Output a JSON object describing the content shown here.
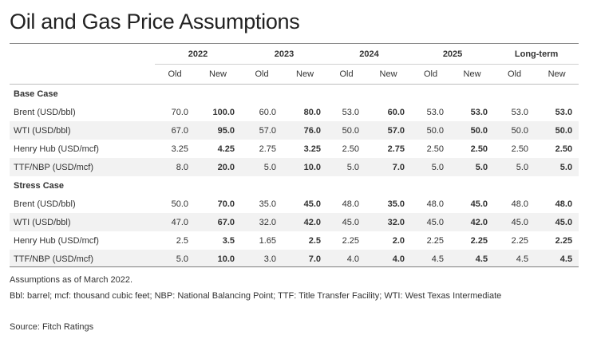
{
  "title": "Oil and Gas Price Assumptions",
  "table": {
    "years": [
      "2022",
      "2023",
      "2024",
      "2025",
      "Long-term"
    ],
    "old_label": "Old",
    "new_label": "New",
    "sections": [
      {
        "name": "Base Case",
        "rows": [
          {
            "label": "Brent (USD/bbl)",
            "values": [
              "70.0",
              "100.0",
              "60.0",
              "80.0",
              "53.0",
              "60.0",
              "53.0",
              "53.0",
              "53.0",
              "53.0"
            ]
          },
          {
            "label": "WTI (USD/bbl)",
            "values": [
              "67.0",
              "95.0",
              "57.0",
              "76.0",
              "50.0",
              "57.0",
              "50.0",
              "50.0",
              "50.0",
              "50.0"
            ]
          },
          {
            "label": "Henry Hub (USD/mcf)",
            "values": [
              "3.25",
              "4.25",
              "2.75",
              "3.25",
              "2.50",
              "2.75",
              "2.50",
              "2.50",
              "2.50",
              "2.50"
            ]
          },
          {
            "label": "TTF/NBP (USD/mcf)",
            "values": [
              "8.0",
              "20.0",
              "5.0",
              "10.0",
              "5.0",
              "7.0",
              "5.0",
              "5.0",
              "5.0",
              "5.0"
            ]
          }
        ]
      },
      {
        "name": "Stress Case",
        "rows": [
          {
            "label": "Brent (USD/bbl)",
            "values": [
              "50.0",
              "70.0",
              "35.0",
              "45.0",
              "48.0",
              "35.0",
              "48.0",
              "45.0",
              "48.0",
              "48.0"
            ]
          },
          {
            "label": "WTI (USD/bbl)",
            "values": [
              "47.0",
              "67.0",
              "32.0",
              "42.0",
              "45.0",
              "32.0",
              "45.0",
              "42.0",
              "45.0",
              "45.0"
            ]
          },
          {
            "label": "Henry Hub (USD/mcf)",
            "values": [
              "2.5",
              "3.5",
              "1.65",
              "2.5",
              "2.25",
              "2.0",
              "2.25",
              "2.25",
              "2.25",
              "2.25"
            ]
          },
          {
            "label": "TTF/NBP (USD/mcf)",
            "values": [
              "5.0",
              "10.0",
              "3.0",
              "7.0",
              "4.0",
              "4.0",
              "4.5",
              "4.5",
              "4.5",
              "4.5"
            ]
          }
        ]
      }
    ]
  },
  "notes": {
    "line1": "Assumptions as of March 2022.",
    "line2": "Bbl: barrel; mcf: thousand cubic feet; NBP: National Balancing Point; TTF: Title Transfer Facility; WTI: West Texas Intermediate",
    "source": "Source: Fitch Ratings"
  }
}
